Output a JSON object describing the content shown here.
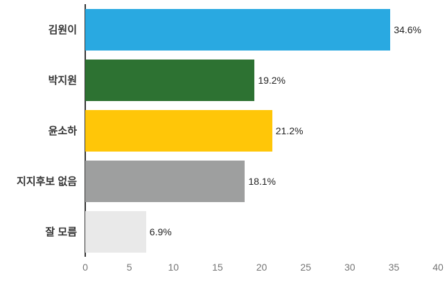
{
  "chart_data": {
    "type": "bar",
    "orientation": "horizontal",
    "title": "",
    "xlabel": "",
    "ylabel": "",
    "categories": [
      "김원이",
      "박지원",
      "윤소하",
      "지지후보 없음",
      "잘 모름"
    ],
    "values": [
      34.6,
      19.2,
      21.2,
      18.1,
      6.9
    ],
    "value_labels": [
      "34.6%",
      "19.2%",
      "21.2%",
      "18.1%",
      "6.9%"
    ],
    "bar_colors": [
      "#29a9e1",
      "#2d7232",
      "#ffc608",
      "#9e9f9f",
      "#e9e9e9"
    ],
    "xlim": [
      0,
      40
    ],
    "x_ticks": [
      0,
      5,
      10,
      15,
      20,
      25,
      30,
      35,
      40
    ],
    "grid": false,
    "legend": "none"
  },
  "colors": {
    "axis_line": "#333333",
    "category_label": "#333333",
    "value_label": "#222222",
    "tick_label": "#757575",
    "background": "#ffffff"
  }
}
